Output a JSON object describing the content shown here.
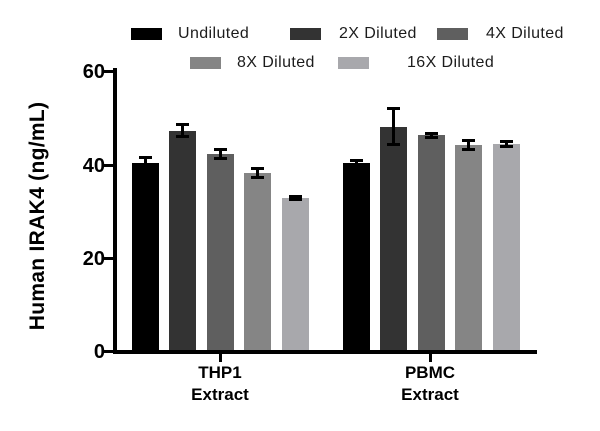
{
  "figure": {
    "background": "#ffffff",
    "axis_color": "#000000",
    "error_bar_color": "#000000"
  },
  "y_axis": {
    "title": "Human IRAK4 (ng/mL)",
    "tick_labels": [
      "60",
      "40",
      "20",
      "0"
    ]
  },
  "x_axis": {
    "groups": [
      {
        "line1": "THP1",
        "line2": "Extract"
      },
      {
        "line1": "PBMC",
        "line2": "Extract"
      }
    ]
  },
  "legend": {
    "items": [
      {
        "label": "Undiluted",
        "color": "#000000"
      },
      {
        "label": "2X Diluted",
        "color": "#333333"
      },
      {
        "label": "4X Diluted",
        "color": "#5f5f5f"
      },
      {
        "label": "8X Diluted",
        "color": "#858585"
      },
      {
        "label": "16X Diluted",
        "color": "#a8a8ac"
      }
    ]
  },
  "chart_data": {
    "type": "bar",
    "title": "",
    "xlabel": "",
    "ylabel": "Human IRAK4 (ng/mL)",
    "categories": [
      "THP1 Extract",
      "PBMC Extract"
    ],
    "series": [
      {
        "name": "Undiluted",
        "color": "#000000",
        "values": [
          40.6,
          40.4
        ],
        "errors": [
          1.0,
          0.6
        ]
      },
      {
        "name": "2X Diluted",
        "color": "#333333",
        "values": [
          47.4,
          48.3
        ],
        "errors": [
          1.3,
          3.8
        ]
      },
      {
        "name": "4X Diluted",
        "color": "#5f5f5f",
        "values": [
          42.5,
          46.4
        ],
        "errors": [
          1.0,
          0.5
        ]
      },
      {
        "name": "8X Diluted",
        "color": "#858585",
        "values": [
          38.4,
          44.3
        ],
        "errors": [
          0.9,
          1.0
        ]
      },
      {
        "name": "16X Diluted",
        "color": "#a8a8ac",
        "values": [
          33.0,
          44.6
        ],
        "errors": [
          0.4,
          0.5
        ]
      }
    ],
    "ylim": [
      0,
      60
    ],
    "yticks": [
      0,
      20,
      40,
      60
    ],
    "grid": false,
    "error_bars": true,
    "legend_position": "top"
  }
}
